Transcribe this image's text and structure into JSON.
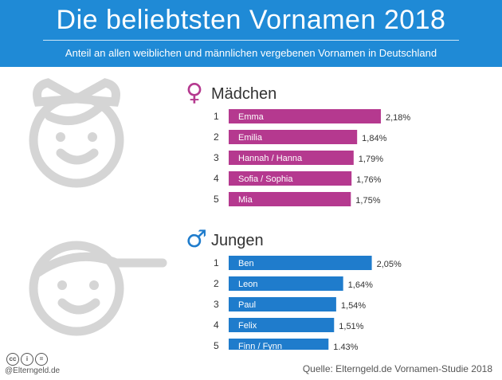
{
  "header": {
    "title": "Die beliebtsten Vornamen 2018",
    "subtitle": "Anteil an allen weiblichen und männlichen vergebenen Vornamen in Deutschland"
  },
  "chart_data": [
    {
      "type": "bar",
      "title": "Mädchen",
      "symbol": "♀",
      "color": "#b5398f",
      "ranks": [
        "1",
        "2",
        "3",
        "4",
        "5"
      ],
      "categories": [
        "Emma",
        "Emilia",
        "Hannah / Hanna",
        "Sofia / Sophia",
        "Mia"
      ],
      "values": [
        2.18,
        1.84,
        1.79,
        1.76,
        1.75
      ],
      "value_labels": [
        "2,18%",
        "1,84%",
        "1,79%",
        "1,76%",
        "1,75%"
      ]
    },
    {
      "type": "bar",
      "title": "Jungen",
      "symbol": "♂",
      "color": "#1f7ccc",
      "ranks": [
        "1",
        "2",
        "3",
        "4",
        "5"
      ],
      "categories": [
        "Ben",
        "Leon",
        "Paul",
        "Felix",
        "Finn / Fynn"
      ],
      "values": [
        2.05,
        1.64,
        1.54,
        1.51,
        1.43
      ],
      "value_labels": [
        "2,05%",
        "1,64%",
        "1,54%",
        "1,51%",
        "1,43%"
      ]
    }
  ],
  "icons": {
    "girl_face": "girl-face-icon",
    "boy_face": "boy-face-icon",
    "license": [
      "cc",
      "by",
      "="
    ]
  },
  "footer": {
    "handle": "@Elterngeld.de",
    "source": "Quelle: Elterngeld.de Vornamen-Studie 2018"
  }
}
